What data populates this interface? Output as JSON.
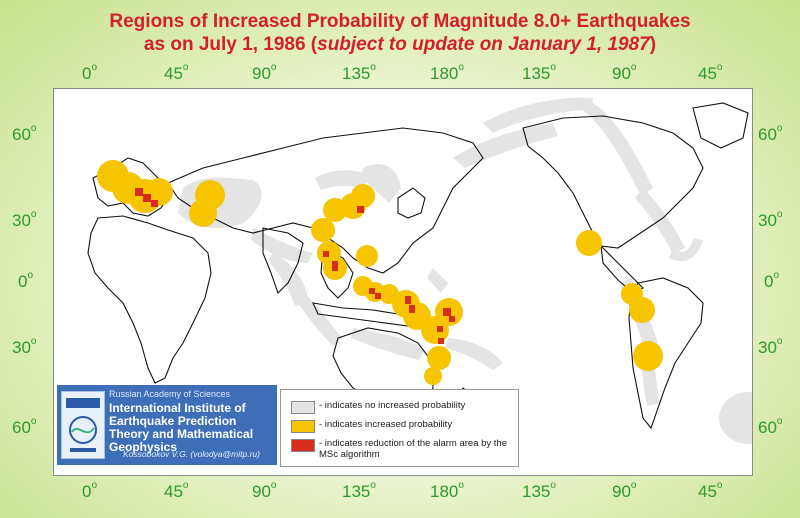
{
  "title": {
    "line1": "Regions of Increased Probability of Magnitude 8.0+ Earthquakes",
    "line2_prefix": "as on July 1, 1986 (",
    "line2_italic": "subject to update on January 1, 1987",
    "line2_suffix": ")"
  },
  "axes": {
    "longitude_labels": [
      "0",
      "45",
      "90",
      "135",
      "180",
      "135",
      "90",
      "45"
    ],
    "latitude_labels": [
      "60",
      "30",
      "0",
      "30",
      "60"
    ],
    "degree_symbol": "o"
  },
  "colors": {
    "title": "#d4202a",
    "axis_labels": "#2c9a2c",
    "no_increase": "#e4e4e4",
    "increased": "#f7c400",
    "msc_reduced": "#d82c1e",
    "institute_panel": "#3d6eb7"
  },
  "institute": {
    "academy": "Russian Academy of Sciences",
    "name": "International Institute of Earthquake Prediction Theory and Mathematical Geophysics",
    "author": "Kossobokov V.G. (volodya@mitp.ru)",
    "logo": "iiept-logo-icon"
  },
  "legend": [
    {
      "color_key": "no_increase",
      "text": "- indicates no increased probability"
    },
    {
      "color_key": "increased",
      "text": "- indicates increased probability"
    },
    {
      "color_key": "msc_reduced",
      "text": "- indicates reduction of the alarm area by the MSc algorithm"
    }
  ]
}
